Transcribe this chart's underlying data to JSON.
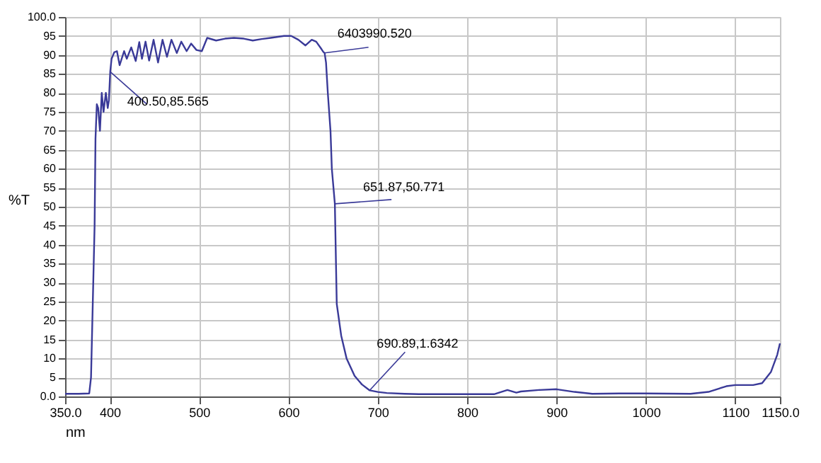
{
  "chart_data": {
    "type": "line",
    "xlabel": "nm",
    "ylabel": "%T",
    "x": [
      350,
      365,
      377,
      379,
      381,
      383,
      384,
      385.5,
      387,
      389,
      391,
      393,
      395.6,
      397.7,
      399,
      399.8,
      400.5,
      402,
      405,
      408,
      411,
      416,
      419,
      424,
      429,
      433,
      436,
      440,
      444,
      449,
      454,
      459,
      464,
      469,
      475,
      480,
      486,
      491,
      497,
      503,
      509,
      519,
      529,
      539,
      550,
      560,
      570,
      580,
      595,
      603,
      611,
      619,
      626,
      631,
      637,
      639,
      640.4,
      642,
      644,
      647,
      648.5,
      651.87,
      654,
      659,
      665,
      674,
      682,
      690.89,
      700,
      710,
      730,
      746,
      800,
      830,
      845,
      855,
      860,
      880,
      900,
      920,
      940,
      970,
      1000,
      1050,
      1070,
      1090,
      1100,
      1120,
      1130,
      1140,
      1147,
      1150
    ],
    "series": [
      {
        "color": "#3a3a98",
        "values": [
          0.7,
          0.7,
          0.8,
          5,
          25,
          45,
          68,
          77,
          76,
          70,
          80,
          75,
          80,
          76,
          78,
          82,
          85.6,
          89,
          90.7,
          91,
          87.3,
          91,
          89,
          92,
          88.4,
          93.4,
          89,
          93.5,
          88.5,
          94,
          88,
          94,
          89.5,
          94,
          90.5,
          93.5,
          91,
          93,
          91.3,
          91,
          94.5,
          93.8,
          94.3,
          94.5,
          94.3,
          93.8,
          94.2,
          94.5,
          95,
          95,
          94,
          92.5,
          94,
          93.5,
          91.5,
          90.8,
          90.5,
          88,
          80,
          70,
          60,
          50.8,
          24.4,
          16,
          10,
          5.4,
          3.2,
          1.6,
          1.2,
          0.9,
          0.7,
          0.6,
          0.6,
          0.6,
          1.7,
          1.0,
          1.3,
          1.7,
          1.9,
          1.2,
          0.7,
          0.8,
          0.8,
          0.7,
          1.2,
          2.7,
          3.0,
          3.0,
          3.5,
          6.5,
          11,
          14
        ]
      }
    ],
    "xlim": [
      350,
      1150
    ],
    "ylim": [
      0,
      100
    ],
    "xticks": [
      {
        "value": 350,
        "label": "350.0"
      },
      400,
      500,
      600,
      700,
      800,
      900,
      1000,
      1100,
      {
        "value": 1150,
        "label": "1150.0"
      }
    ],
    "yticks": [
      {
        "value": 0,
        "label": "0.0"
      },
      5,
      10,
      15,
      20,
      25,
      30,
      35,
      40,
      45,
      50,
      55,
      60,
      65,
      70,
      75,
      80,
      85,
      90,
      95,
      {
        "value": 100,
        "label": "100.0"
      }
    ],
    "grid": true,
    "marker": "none",
    "line_style": "solid",
    "annotations": [
      {
        "text": "400.50,85.565",
        "x": 400.5,
        "y": 85.565
      },
      {
        "text": "6403990.520",
        "x": 640.4,
        "y": 90.52
      },
      {
        "text": "651.87,50.771",
        "x": 651.87,
        "y": 50.771
      },
      {
        "text": "690.89,1.6342",
        "x": 690.89,
        "y": 1.6342
      }
    ]
  }
}
